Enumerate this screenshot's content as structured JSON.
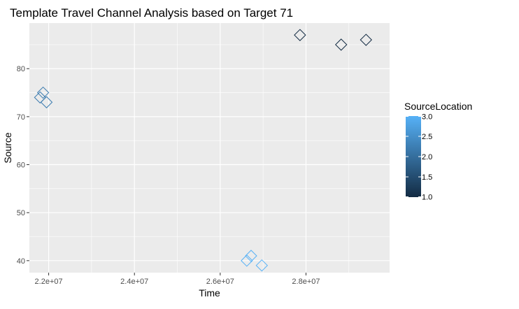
{
  "chart_data": {
    "type": "scatter",
    "title": "Template Travel Channel Analysis based on Target 71",
    "xlabel": "Time",
    "ylabel": "Source",
    "xlim": [
      21550000,
      29950000
    ],
    "ylim": [
      37.5,
      89.5
    ],
    "x_ticks": [
      22000000,
      24000000,
      26000000,
      28000000
    ],
    "x_tick_labels": [
      "2.2e+07",
      "2.4e+07",
      "2.6e+07",
      "2.8e+07"
    ],
    "y_ticks": [
      40,
      50,
      60,
      70,
      80
    ],
    "y_tick_labels": [
      "40",
      "50",
      "60",
      "70",
      "80"
    ],
    "grid": true,
    "marker": "diamond-open",
    "points": [
      {
        "x": 21800000,
        "y": 74,
        "color_value": 2.2
      },
      {
        "x": 21870000,
        "y": 75,
        "color_value": 2.2
      },
      {
        "x": 21950000,
        "y": 73,
        "color_value": 2.2
      },
      {
        "x": 26620000,
        "y": 40,
        "color_value": 3.0
      },
      {
        "x": 26720000,
        "y": 41,
        "color_value": 3.0
      },
      {
        "x": 26970000,
        "y": 39,
        "color_value": 3.0
      },
      {
        "x": 27860000,
        "y": 87,
        "color_value": 1.0
      },
      {
        "x": 28820000,
        "y": 85,
        "color_value": 1.0
      },
      {
        "x": 29400000,
        "y": 86,
        "color_value": 1.0
      }
    ],
    "legend": {
      "title": "SourceLocation",
      "position": "right",
      "range": [
        1.0,
        3.0
      ],
      "labels": [
        "3.0",
        "2.5",
        "2.0",
        "1.5",
        "1.0"
      ],
      "label_values": [
        3.0,
        2.5,
        2.0,
        1.5,
        1.0
      ],
      "color_low": "#132b43",
      "color_high": "#56b1f7"
    },
    "panel_background": "#ebebeb",
    "grid_color": "#ffffff"
  }
}
